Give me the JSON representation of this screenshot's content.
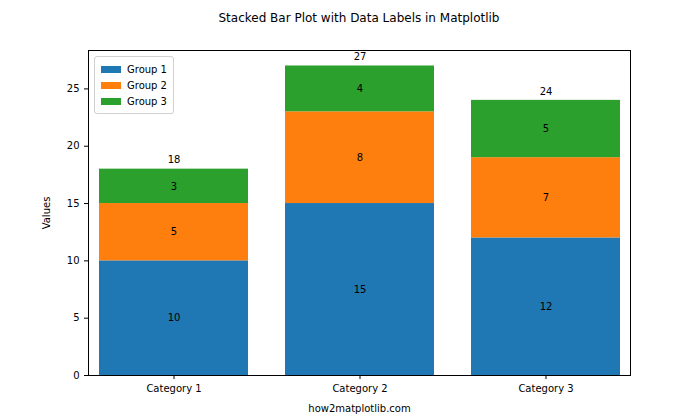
{
  "chart_data": {
    "type": "bar",
    "stacked": true,
    "data_labels": true,
    "title": "Stacked Bar Plot with Data Labels in Matplotlib",
    "x_label": "how2matplotlib.com",
    "y_label": "Values",
    "categories": [
      "Category 1",
      "Category 2",
      "Category 3"
    ],
    "series": [
      {
        "name": "Group 1",
        "color": "#1f77b4",
        "values": [
          10,
          15,
          12
        ]
      },
      {
        "name": "Group 2",
        "color": "#ff7f0e",
        "values": [
          5,
          8,
          7
        ]
      },
      {
        "name": "Group 3",
        "color": "#2ca02c",
        "values": [
          3,
          4,
          5
        ]
      }
    ],
    "totals": [
      18,
      27,
      24
    ],
    "ylim": [
      0,
      28.35
    ],
    "yticks": [
      0,
      5,
      10,
      15,
      20,
      25
    ],
    "legend": "upper left"
  }
}
